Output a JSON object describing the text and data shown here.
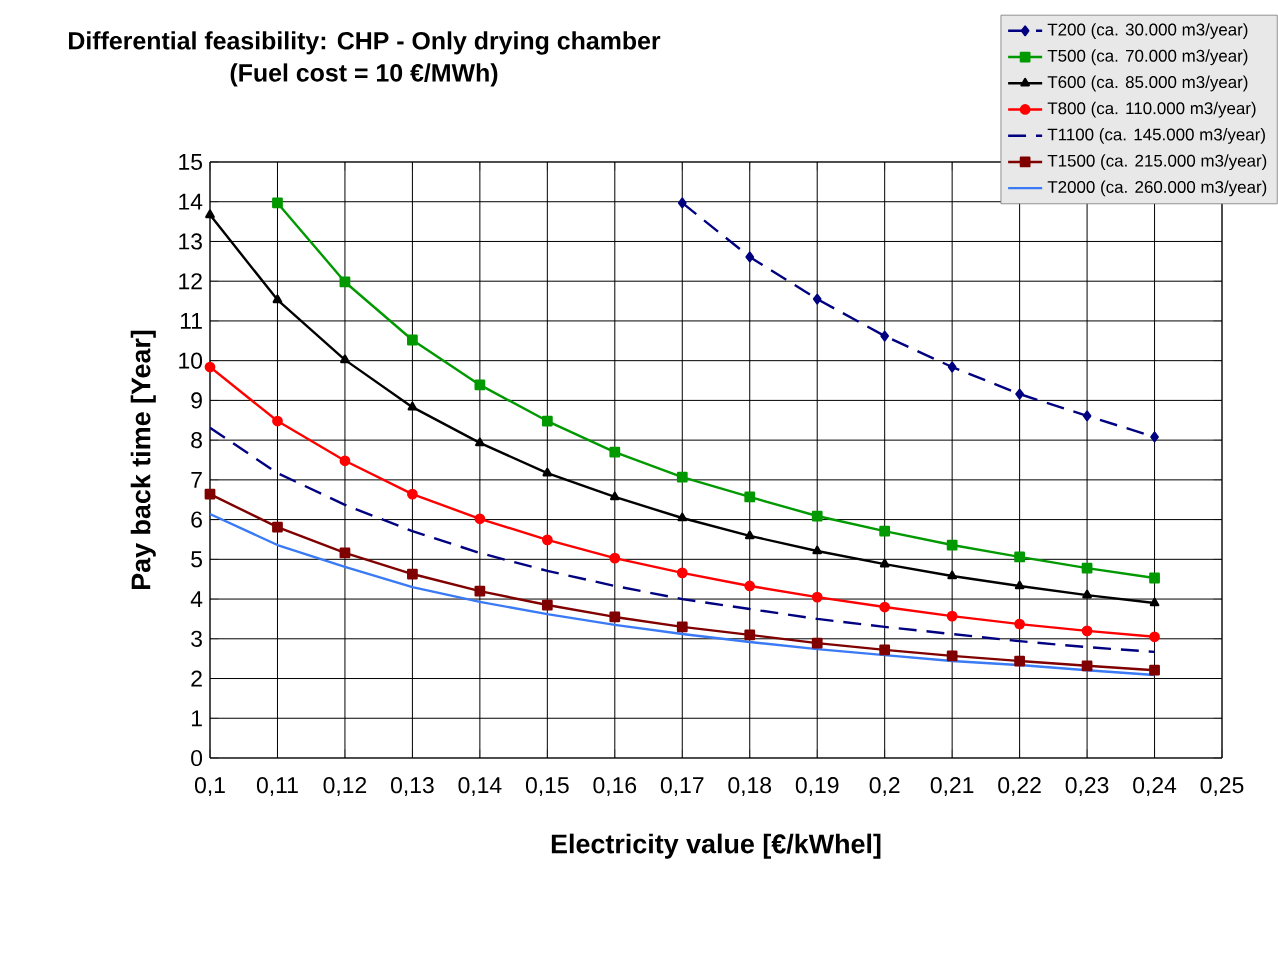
{
  "chart_data": {
    "type": "line",
    "title": "Differential feasibility: CHP - Only drying chamber",
    "subtitle": "(Fuel cost = 10 €/MWh)",
    "xlabel": "Electricity value [€/kWhel]",
    "ylabel": "Pay back time [Year]",
    "x": [
      0.1,
      0.11,
      0.12,
      0.13,
      0.14,
      0.15,
      0.16,
      0.17,
      0.18,
      0.19,
      0.2,
      0.21,
      0.22,
      0.23,
      0.24
    ],
    "xlim": [
      0.1,
      0.25
    ],
    "xticks": [
      {
        "value": 0.1,
        "label": "0,1"
      },
      {
        "value": 0.11,
        "label": "0,11"
      },
      {
        "value": 0.12,
        "label": "0,12"
      },
      {
        "value": 0.13,
        "label": "0,13"
      },
      {
        "value": 0.14,
        "label": "0,14"
      },
      {
        "value": 0.15,
        "label": "0,15"
      },
      {
        "value": 0.16,
        "label": "0,16"
      },
      {
        "value": 0.17,
        "label": "0,17"
      },
      {
        "value": 0.18,
        "label": "0,18"
      },
      {
        "value": 0.19,
        "label": "0,19"
      },
      {
        "value": 0.2,
        "label": "0,2"
      },
      {
        "value": 0.21,
        "label": "0,21"
      },
      {
        "value": 0.22,
        "label": "0,22"
      },
      {
        "value": 0.23,
        "label": "0,23"
      },
      {
        "value": 0.24,
        "label": "0,24"
      },
      {
        "value": 0.25,
        "label": "0,25"
      }
    ],
    "ylim": [
      0,
      15
    ],
    "yticks": [
      0,
      1,
      2,
      3,
      4,
      5,
      6,
      7,
      8,
      9,
      10,
      11,
      12,
      13,
      14,
      15
    ],
    "grid": true,
    "legend": "top right",
    "series": [
      {
        "name": "T200 (ca. 30.000 m3/year)",
        "color": "#000080",
        "marker": "diamond",
        "line_style": "dashed",
        "values": [
          null,
          null,
          null,
          null,
          null,
          null,
          null,
          13.97,
          12.61,
          11.55,
          10.62,
          9.84,
          9.16,
          8.61,
          8.08
        ]
      },
      {
        "name": "T500 (ca. 70.000 m3/year)",
        "color": "#009900",
        "marker": "square",
        "line_style": "solid",
        "values": [
          null,
          13.97,
          11.98,
          10.52,
          9.39,
          8.48,
          7.7,
          7.07,
          6.57,
          6.09,
          5.71,
          5.36,
          5.06,
          4.78,
          4.53
        ]
      },
      {
        "name": "T600 (ca. 85.000 m3/year)",
        "color": "#000000",
        "marker": "triangle",
        "line_style": "solid",
        "values": [
          13.67,
          11.53,
          10.02,
          8.83,
          7.93,
          7.17,
          6.57,
          6.04,
          5.59,
          5.21,
          4.88,
          4.58,
          4.33,
          4.1,
          3.9
        ]
      },
      {
        "name": "T800 (ca. 110.000 m3/year)",
        "color": "#ff0000",
        "marker": "circle",
        "line_style": "solid",
        "values": [
          9.84,
          8.48,
          7.48,
          6.64,
          6.02,
          5.49,
          5.03,
          4.66,
          4.33,
          4.05,
          3.8,
          3.57,
          3.37,
          3.2,
          3.05
        ]
      },
      {
        "name": "T1100 (ca. 145.000 m3/year)",
        "color": "#000080",
        "marker": "none",
        "line_style": "dashed",
        "values": [
          8.31,
          7.17,
          6.37,
          5.71,
          5.16,
          4.71,
          4.33,
          4.0,
          3.75,
          3.5,
          3.3,
          3.12,
          2.94,
          2.79,
          2.67
        ]
      },
      {
        "name": "T1500 (ca. 215.000 m3/year)",
        "color": "#800000",
        "marker": "square",
        "line_style": "solid",
        "values": [
          6.64,
          5.81,
          5.16,
          4.63,
          4.2,
          3.85,
          3.55,
          3.3,
          3.1,
          2.89,
          2.72,
          2.57,
          2.44,
          2.32,
          2.21
        ]
      },
      {
        "name": "T2000 (ca. 260.000 m3/year)",
        "color": "#3a7af5",
        "marker": "none",
        "line_style": "solid",
        "values": [
          6.14,
          5.36,
          4.81,
          4.3,
          3.93,
          3.62,
          3.35,
          3.12,
          2.92,
          2.74,
          2.59,
          2.44,
          2.34,
          2.21,
          2.09
        ]
      }
    ]
  }
}
